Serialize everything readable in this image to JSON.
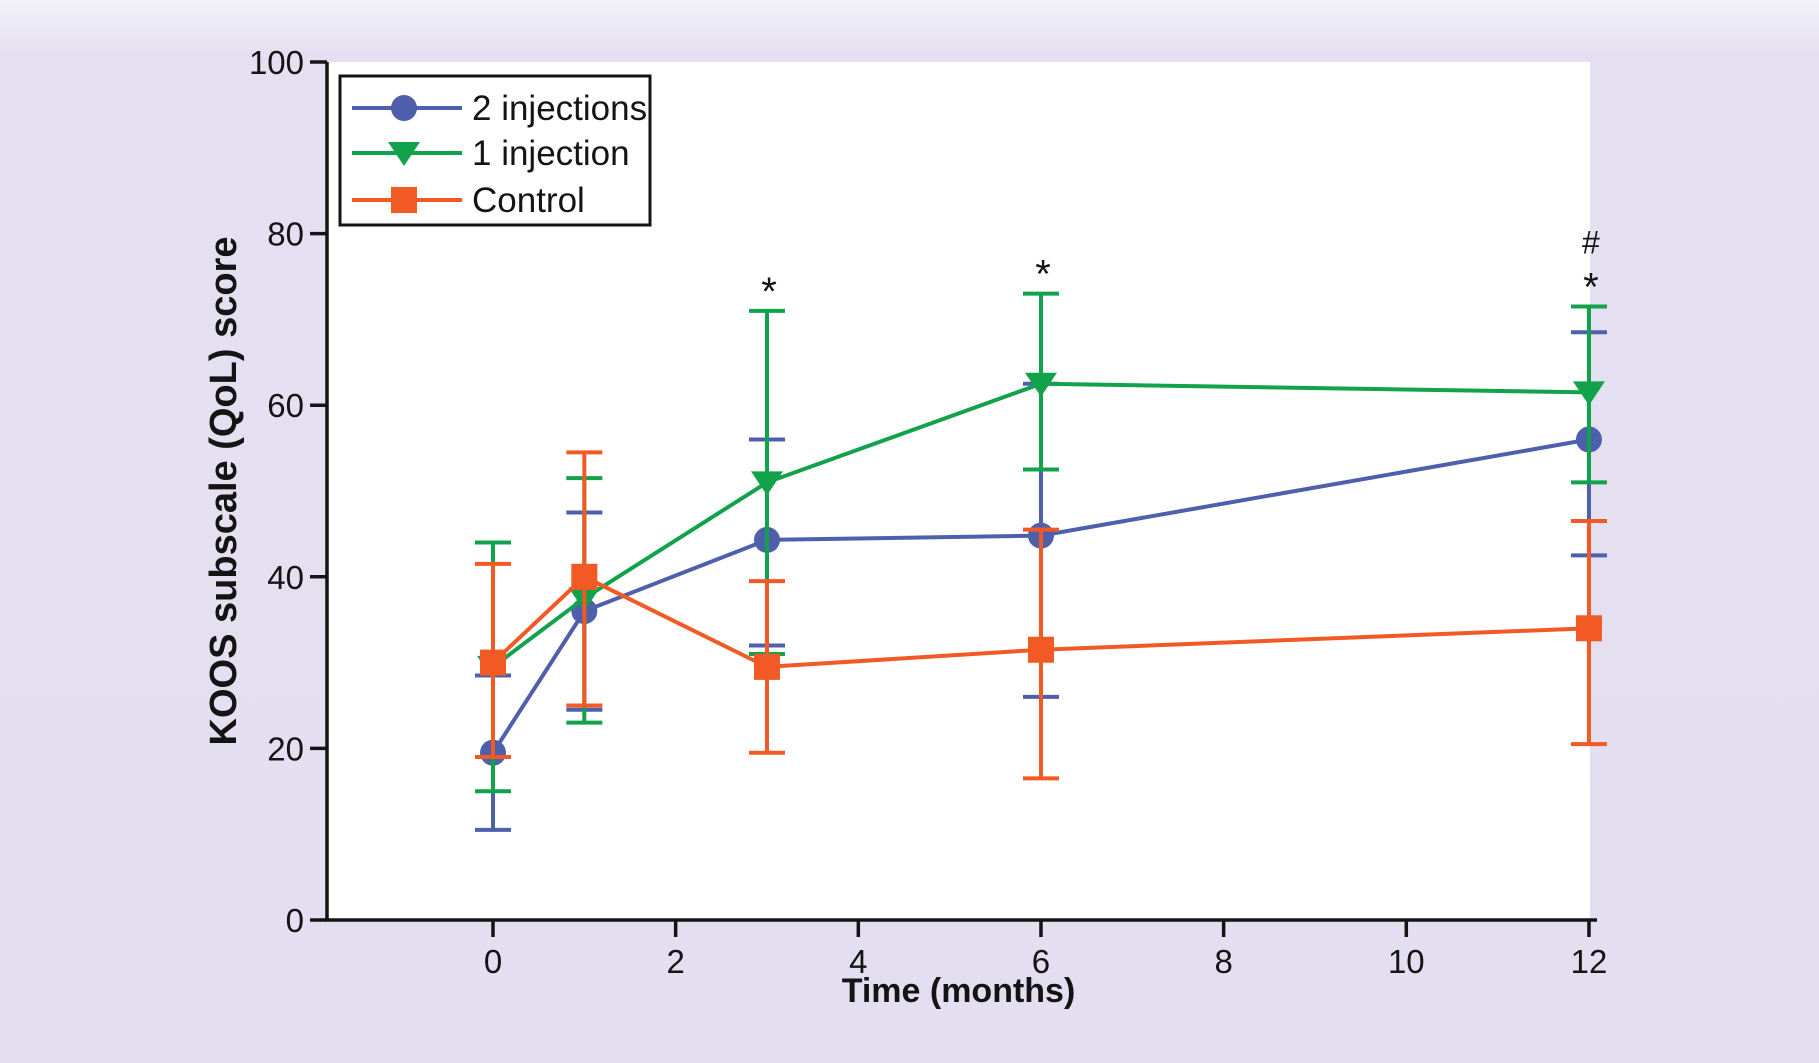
{
  "figure": {
    "background_color": "#e3dff0",
    "plot_background_color": "#ffffff",
    "axis_color": "#141414",
    "text_color": "#141414"
  },
  "chart_data": {
    "type": "line",
    "title": "",
    "xlabel": "Time (months)",
    "ylabel": "KOOS subscale (QoL) score",
    "x": [
      0,
      1,
      3,
      6,
      12
    ],
    "x_ticks": [
      0,
      2,
      4,
      6,
      8,
      10,
      12
    ],
    "y_ticks": [
      0,
      20,
      40,
      60,
      80,
      100
    ],
    "xlim": [
      -1.8,
      12
    ],
    "ylim": [
      0,
      100
    ],
    "grid": false,
    "legend_position": "upper-left",
    "error_bars": true,
    "series": [
      {
        "name": "2 injections",
        "color": "#4e5fac",
        "marker": "circle",
        "values": [
          19.5,
          36,
          44.3,
          44.8,
          56
        ],
        "err_lo": [
          10.5,
          24.5,
          32,
          26,
          42.5
        ],
        "err_hi": [
          28.5,
          47.5,
          56,
          62.5,
          68.5
        ]
      },
      {
        "name": "1 injection",
        "color": "#12a24b",
        "marker": "triangle-down",
        "values": [
          29.5,
          37.5,
          51,
          62.5,
          61.5
        ],
        "err_lo": [
          15,
          23,
          31,
          52.5,
          51
        ],
        "err_hi": [
          44,
          51.5,
          71,
          73,
          71.5
        ]
      },
      {
        "name": "Control",
        "color": "#f15a25",
        "marker": "square",
        "values": [
          30,
          40,
          29.5,
          31.5,
          34
        ],
        "err_lo": [
          19,
          25,
          19.5,
          16.5,
          20.5
        ],
        "err_hi": [
          41.5,
          54.5,
          39.5,
          45.5,
          46.5
        ]
      }
    ],
    "annotations": [
      {
        "month": 3,
        "symbols": [
          "*"
        ]
      },
      {
        "month": 6,
        "symbols": [
          "*"
        ]
      },
      {
        "month": 12,
        "symbols": [
          "*",
          "#"
        ]
      }
    ]
  }
}
